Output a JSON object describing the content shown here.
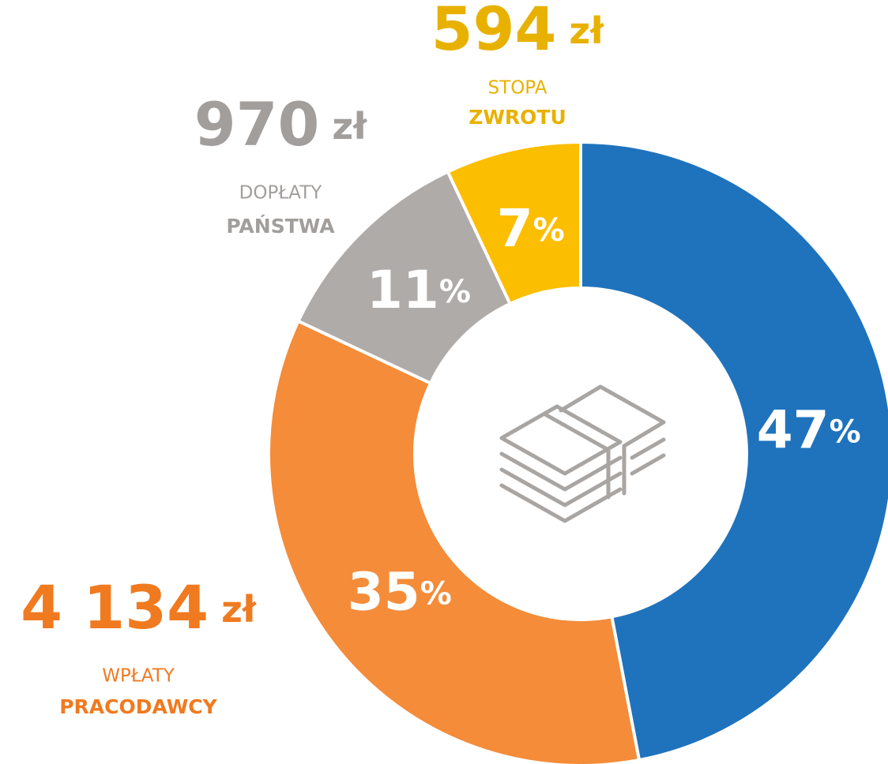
{
  "chart_data": {
    "type": "donut",
    "values": [
      47,
      35,
      11,
      7
    ],
    "value_labels": [
      "47%",
      "35%",
      "11%",
      "7%"
    ],
    "colors": [
      "#1f73bd",
      "#f48c3a",
      "#afaba9",
      "#fcbe00"
    ],
    "annotations": [
      {
        "amount": "594 zł",
        "label_light": "STOPA",
        "label_bold": "ZWROTU",
        "color": "#e8b100"
      },
      {
        "amount": "970 zł",
        "label_light": "DOPŁATY",
        "label_bold": "PAŃSTWA",
        "color": "#a19e9c"
      },
      {
        "amount": "4 134 zł",
        "label_light": "WPŁATY",
        "label_bold": "PRACODAWCY",
        "color": "#f07a20"
      }
    ]
  }
}
